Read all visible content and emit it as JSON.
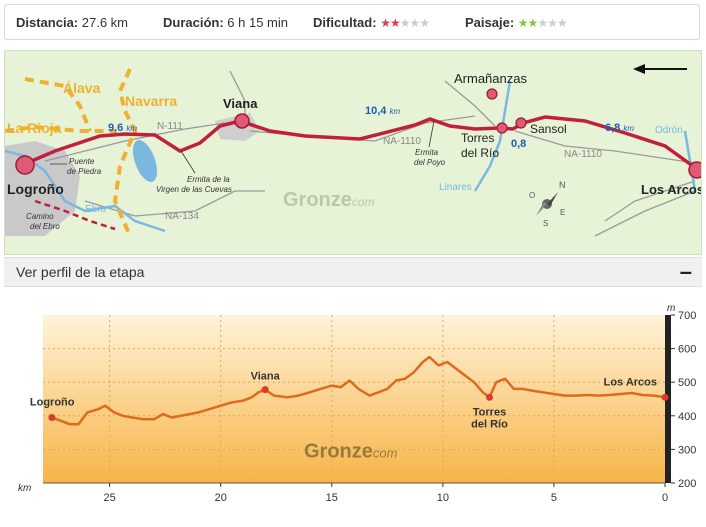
{
  "stats": {
    "distance_label": "Distancia:",
    "distance_value": "27.6 km",
    "duration_label": "Duración:",
    "duration_value": "6 h 15 min",
    "difficulty_label": "Dificultad:",
    "difficulty_stars": 2,
    "difficulty_max": 5,
    "landscape_label": "Paisaje:",
    "landscape_stars": 2,
    "landscape_max": 5,
    "colors": {
      "difficulty": "#e23c4a",
      "landscape": "#8bc53f",
      "empty_star": "#cccccc"
    }
  },
  "map": {
    "regions": [
      "Álava",
      "Navarra",
      "La Rioja"
    ],
    "towns": {
      "logrono": "Logroño",
      "viana": "Viana",
      "armananzas": "Armañanzas",
      "torres": [
        "Torres",
        "del Río"
      ],
      "sansol": "Sansol",
      "los_arcos": "Los Arcos"
    },
    "roads": [
      "N-111",
      "NA-1110",
      "NA-1110",
      "NA-134",
      "NA-1110"
    ],
    "rivers": [
      "Ebro",
      "Linares",
      "Odrón"
    ],
    "landmarks": {
      "puente": [
        "Puente",
        "de Piedra"
      ],
      "camino": [
        "Camino",
        "del Ebro"
      ],
      "ermita_cuevas": [
        "Ermita de la",
        "Virgen de las Cuevas"
      ],
      "ermita_poyo": [
        "Ermita",
        "del Poyo"
      ]
    },
    "distances": [
      {
        "num": "9,6",
        "unit": "km"
      },
      {
        "num": "10,4",
        "unit": "km"
      },
      {
        "num": "0,8",
        "unit": ""
      },
      {
        "num": "6,8",
        "unit": "km"
      }
    ],
    "compass": [
      "N",
      "E",
      "S",
      "O"
    ],
    "watermark": {
      "main": "Gronze",
      "suffix": "com"
    },
    "colors": {
      "route": "#c0203a",
      "river": "#7ab8e0",
      "region": "#f0b030",
      "road": "#999999"
    }
  },
  "profile_header": {
    "title": "Ver perfil de la etapa",
    "toggle": "–"
  },
  "chart_data": {
    "type": "area",
    "x_unit": "km",
    "y_unit": "m",
    "xlim": [
      28,
      0
    ],
    "ylim": [
      200,
      700
    ],
    "x_ticks": [
      25,
      20,
      15,
      10,
      5,
      0
    ],
    "y_ticks": [
      200,
      300,
      400,
      500,
      600,
      700
    ],
    "grid": true,
    "series": [
      {
        "x": [
          27.6,
          27.2,
          26.8,
          26.4,
          26.0,
          25.5,
          25.2,
          24.8,
          24.4,
          24.0,
          23.5,
          23.0,
          22.6,
          22.2,
          21.8,
          21.4,
          21.0,
          20.5,
          20.0,
          19.5,
          19.0,
          18.6,
          18.3,
          18.0,
          17.6,
          17.0,
          16.5,
          16.0,
          15.5,
          15.0,
          14.6,
          14.2,
          13.8,
          13.3,
          12.9,
          12.5,
          12.1,
          11.7,
          11.3,
          10.9,
          10.6,
          10.2,
          9.8,
          9.4,
          9.0,
          8.6,
          8.2,
          7.9,
          7.6,
          7.2,
          6.8,
          6.4,
          6.0,
          5.5,
          5.0,
          4.5,
          4.0,
          3.5,
          3.0,
          2.5,
          2.0,
          1.5,
          1.0,
          0.5,
          0.0
        ],
        "y": [
          395,
          385,
          375,
          375,
          410,
          420,
          430,
          410,
          400,
          395,
          390,
          390,
          405,
          395,
          400,
          405,
          410,
          420,
          430,
          440,
          445,
          455,
          470,
          478,
          460,
          455,
          460,
          470,
          480,
          490,
          485,
          505,
          480,
          460,
          470,
          480,
          505,
          510,
          530,
          560,
          575,
          550,
          560,
          540,
          520,
          500,
          470,
          455,
          500,
          510,
          480,
          480,
          475,
          470,
          465,
          460,
          460,
          462,
          460,
          462,
          465,
          468,
          462,
          460,
          455
        ]
      }
    ],
    "labels": {
      "logrono": "Logroño",
      "viana": "Viana",
      "torres": [
        "Torres",
        "del Río"
      ],
      "los_arcos": "Los Arcos"
    },
    "watermark": {
      "main": "Gronze",
      "suffix": "com"
    },
    "colors": {
      "line": "#e06a1c",
      "fill_top": "#fff3d9",
      "fill_bottom": "#f7b447",
      "point": "#d93c2e"
    }
  }
}
